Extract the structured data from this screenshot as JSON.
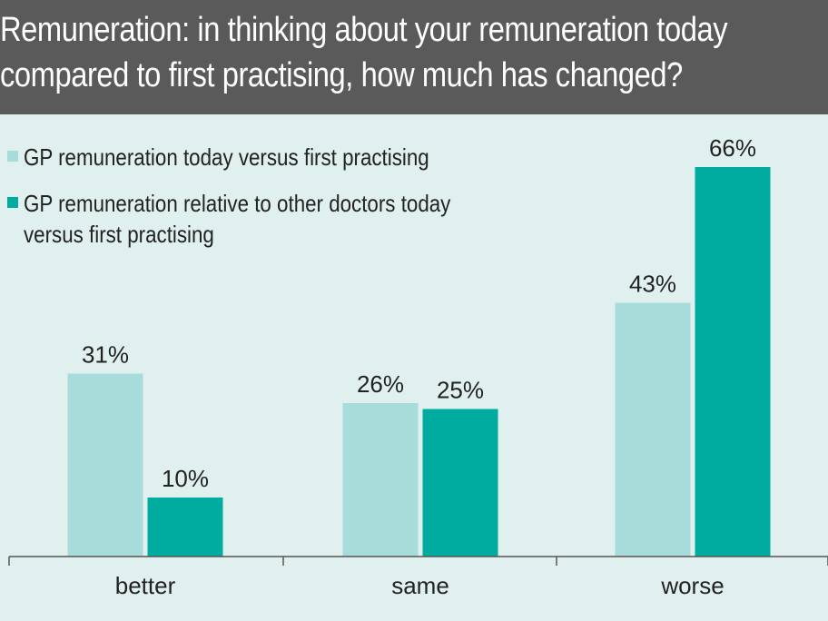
{
  "title": "Remuneration: in thinking about your remuneration today compared to first practising, how much has changed?",
  "title_lines": [
    "Remuneration: in thinking about your remuneration today",
    "compared to first practising, how much has changed?"
  ],
  "colors": {
    "header_bg": "#5a5a5a",
    "plot_bg": "#dff0ef",
    "series_light": "#a8dcdb",
    "series_dark": "#00aba0",
    "text": "#222222"
  },
  "chart_data": {
    "type": "bar",
    "title": "Remuneration: in thinking about your remuneration today compared to first practising, how much has changed?",
    "categories": [
      "better",
      "same",
      "worse"
    ],
    "series": [
      {
        "name": "GP remuneration today versus first practising",
        "name_lines": [
          "GP remuneration today versus first practising"
        ],
        "values": [
          31,
          26,
          43
        ],
        "labels": [
          "31%",
          "26%",
          "43%"
        ],
        "color": "#a8dcdb"
      },
      {
        "name": "GP remuneration relative to other doctors today versus first practising",
        "name_lines": [
          "GP remuneration relative to other doctors today",
          "versus first practising"
        ],
        "values": [
          10,
          25,
          66
        ],
        "labels": [
          "10%",
          "25%",
          "66%"
        ],
        "color": "#00aba0"
      }
    ],
    "unit": "%",
    "ylim": [
      0,
      70
    ],
    "grid": false,
    "legend_position": "top-left"
  }
}
